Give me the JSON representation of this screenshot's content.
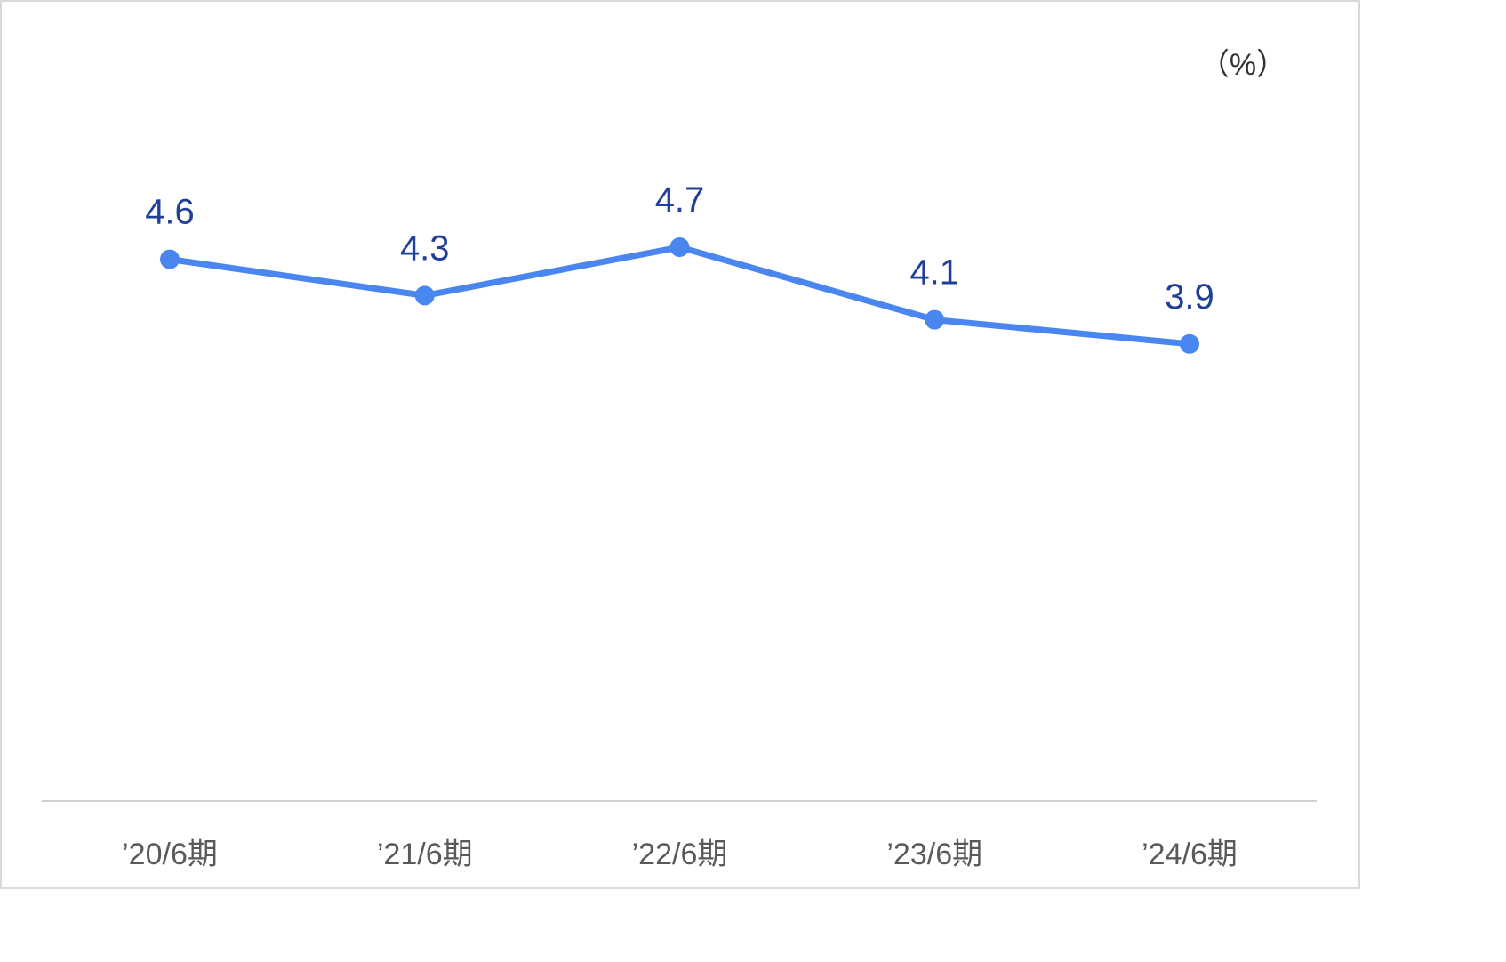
{
  "chart_data": {
    "type": "line",
    "unit": "（%）",
    "categories": [
      "’20/6期",
      "’21/6期",
      "’22/6期",
      "’23/6期",
      "’24/6期"
    ],
    "values": [
      4.6,
      4.3,
      4.7,
      4.1,
      3.9
    ],
    "data_labels": [
      "4.6",
      "4.3",
      "4.7",
      "4.1",
      "3.9"
    ],
    "series_color": "#4a86f0",
    "label_color": "#1f3f99",
    "axis_line_color": "#d0d0d0",
    "grid": false,
    "legend": "none"
  }
}
